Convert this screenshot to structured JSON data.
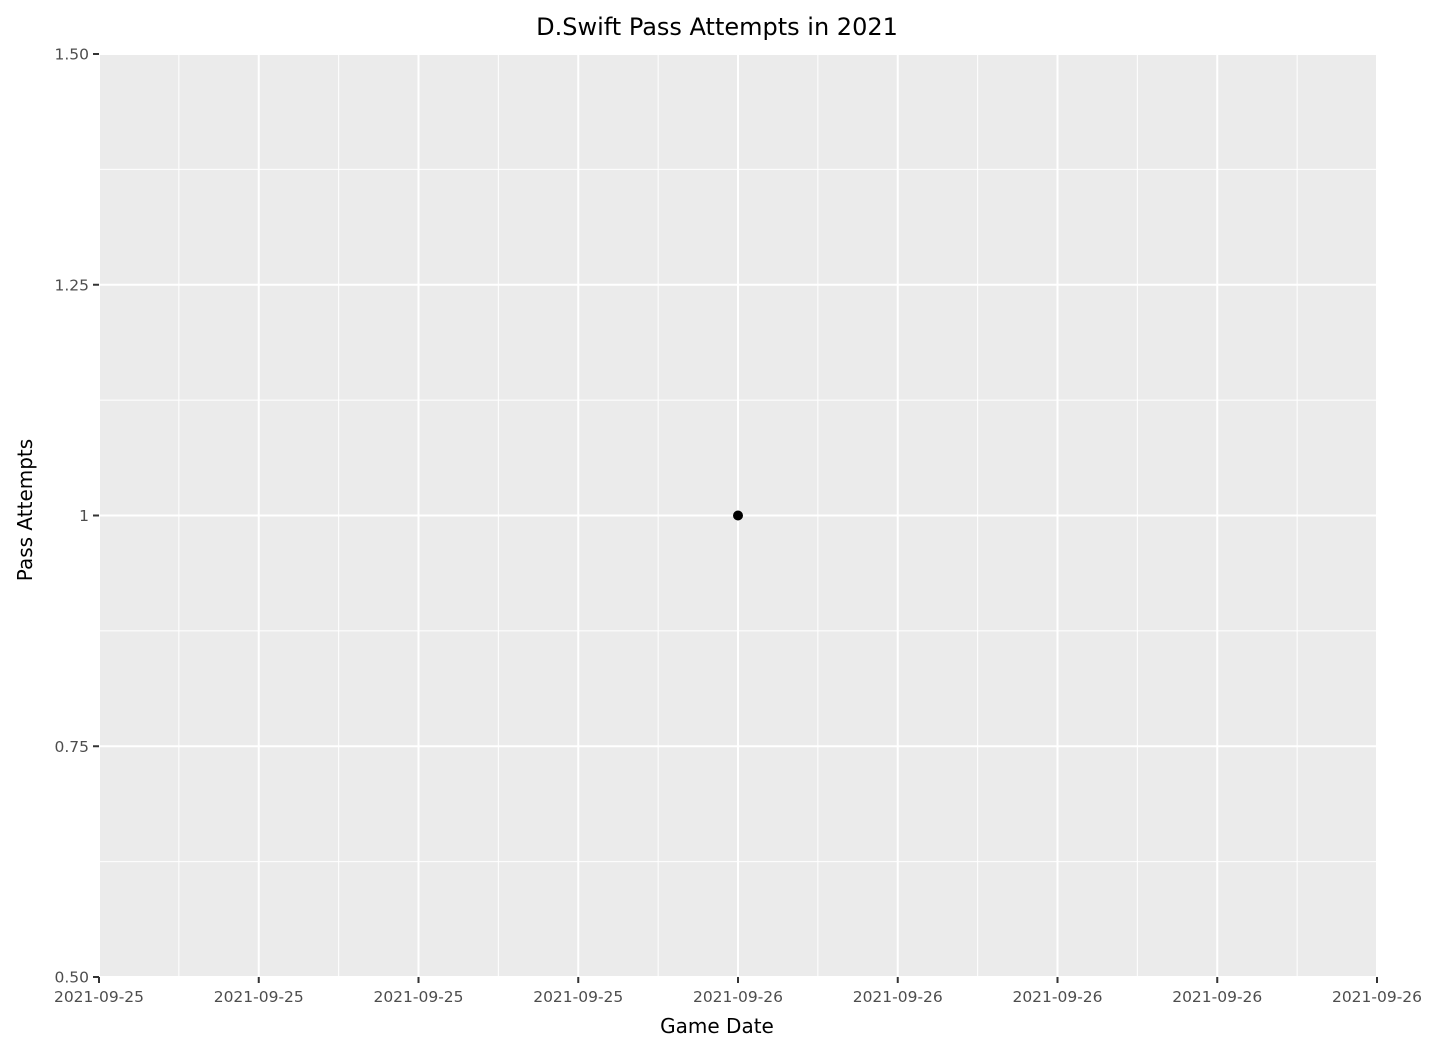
{
  "chart_data": {
    "type": "scatter",
    "title": "D.Swift Pass Attempts in 2021",
    "xlabel": "Game Date",
    "ylabel": "Pass Attempts",
    "x_tick_labels": [
      "2021-09-25",
      "2021-09-25",
      "2021-09-25",
      "2021-09-25",
      "2021-09-26",
      "2021-09-26",
      "2021-09-26",
      "2021-09-26",
      "2021-09-26"
    ],
    "y_tick_labels": [
      "0.50",
      "0.75",
      "1",
      "1.25",
      "1.50"
    ],
    "y_ticks": [
      0.5,
      0.75,
      1,
      1.25,
      1.5
    ],
    "ylim": [
      0.5,
      1.5
    ],
    "points": [
      {
        "x": "2021-09-26",
        "y": 1
      }
    ],
    "grid": true,
    "legend": "none",
    "colors": {
      "panel_background": "#ebebeb",
      "grid_line": "#ffffff",
      "point": "#000000",
      "tick_text": "#4d4d4d"
    }
  }
}
